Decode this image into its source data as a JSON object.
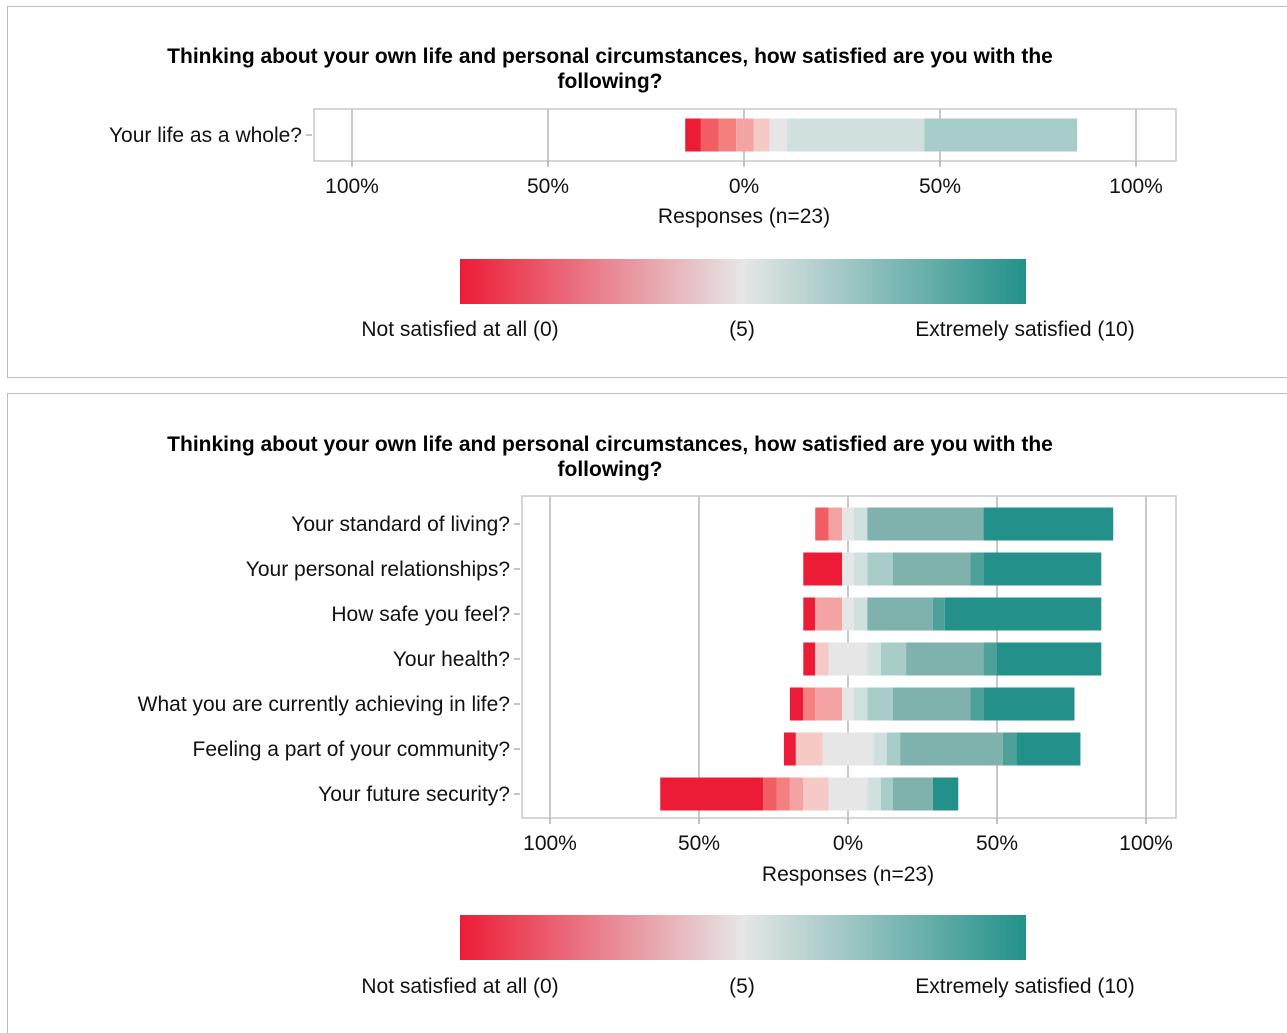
{
  "colors": {
    "scale": [
      "#ed1c36",
      "#f25d63",
      "#f47f7f",
      "#f3a4a2",
      "#f4c9c6",
      "#e6e6e6",
      "#cfe0de",
      "#a8cdc8",
      "#7fb2ac",
      "#4ea199",
      "#23918a"
    ],
    "gradient_low": "#ed1c36",
    "gradient_mid": "#e6e6e6",
    "gradient_high": "#23918a"
  },
  "chart_data": [
    {
      "type": "bar",
      "orientation": "horizontal",
      "stacked": "diverging",
      "title": "Thinking about your own life and personal circumstances, how satisfied are you with the following?",
      "xlabel": "Responses (n=23)",
      "x_ticks": [
        "100%",
        "50%",
        "0%",
        "50%",
        "100%"
      ],
      "x_tick_values": [
        -100,
        -50,
        0,
        50,
        100
      ],
      "xlim": [
        -100,
        100
      ],
      "grid": true,
      "categories": [
        "Your life as a whole?"
      ],
      "segments": [
        [
          {
            "level": 0,
            "from": -15,
            "to": -11
          },
          {
            "level": 1,
            "from": -11,
            "to": -6.5
          },
          {
            "level": 2,
            "from": -6.5,
            "to": -2
          },
          {
            "level": 3,
            "from": -2,
            "to": 2.5
          },
          {
            "level": 4,
            "from": 2.5,
            "to": 6.5
          },
          {
            "level": 5,
            "from": 6.5,
            "to": 11
          },
          {
            "level": 6,
            "from": 11,
            "to": 46
          },
          {
            "level": 7,
            "from": 46,
            "to": 85
          }
        ]
      ],
      "legend": {
        "low_label": "Not satisfied at all (0)",
        "mid_label": "(5)",
        "high_label": "Extremely satisfied (10)"
      }
    },
    {
      "type": "bar",
      "orientation": "horizontal",
      "stacked": "diverging",
      "title": "Thinking about your own life and personal circumstances, how satisfied are you with the following?",
      "xlabel": "Responses (n=23)",
      "x_ticks": [
        "100%",
        "50%",
        "0%",
        "50%",
        "100%"
      ],
      "x_tick_values": [
        -100,
        -50,
        0,
        50,
        100
      ],
      "xlim": [
        -100,
        100
      ],
      "grid": true,
      "categories": [
        "Your standard of living?",
        "Your personal relationships?",
        "How safe you feel?",
        "Your health?",
        "What you are currently achieving in life?",
        "Feeling a part of your community?",
        "Your future security?"
      ],
      "segments": [
        [
          {
            "level": 1,
            "from": -11,
            "to": -6.5
          },
          {
            "level": 3,
            "from": -6.5,
            "to": -2
          },
          {
            "level": 5,
            "from": -2,
            "to": 2
          },
          {
            "level": 6,
            "from": 2,
            "to": 6.5
          },
          {
            "level": 8,
            "from": 6.5,
            "to": 45.5
          },
          {
            "level": 10,
            "from": 45.5,
            "to": 89
          }
        ],
        [
          {
            "level": 0,
            "from": -15,
            "to": -2
          },
          {
            "level": 5,
            "from": -2,
            "to": 2
          },
          {
            "level": 6,
            "from": 2,
            "to": 6.5
          },
          {
            "level": 7,
            "from": 6.5,
            "to": 15
          },
          {
            "level": 8,
            "from": 15,
            "to": 41
          },
          {
            "level": 9,
            "from": 41,
            "to": 45.5
          },
          {
            "level": 10,
            "from": 45.5,
            "to": 85
          }
        ],
        [
          {
            "level": 0,
            "from": -15,
            "to": -11
          },
          {
            "level": 3,
            "from": -11,
            "to": -2
          },
          {
            "level": 5,
            "from": -2,
            "to": 2
          },
          {
            "level": 6,
            "from": 2,
            "to": 6.5
          },
          {
            "level": 8,
            "from": 6.5,
            "to": 28.5
          },
          {
            "level": 9,
            "from": 28.5,
            "to": 32.5
          },
          {
            "level": 10,
            "from": 32.5,
            "to": 85
          }
        ],
        [
          {
            "level": 0,
            "from": -15,
            "to": -11
          },
          {
            "level": 4,
            "from": -11,
            "to": -6.5
          },
          {
            "level": 5,
            "from": -6.5,
            "to": 6.5
          },
          {
            "level": 6,
            "from": 6.5,
            "to": 11
          },
          {
            "level": 7,
            "from": 11,
            "to": 19.5
          },
          {
            "level": 8,
            "from": 19.5,
            "to": 45.5
          },
          {
            "level": 9,
            "from": 45.5,
            "to": 50
          },
          {
            "level": 10,
            "from": 50,
            "to": 85
          }
        ],
        [
          {
            "level": 0,
            "from": -19.5,
            "to": -15
          },
          {
            "level": 2,
            "from": -15,
            "to": -11
          },
          {
            "level": 3,
            "from": -11,
            "to": -2
          },
          {
            "level": 5,
            "from": -2,
            "to": 2
          },
          {
            "level": 6,
            "from": 2,
            "to": 6.5
          },
          {
            "level": 7,
            "from": 6.5,
            "to": 15
          },
          {
            "level": 8,
            "from": 15,
            "to": 41
          },
          {
            "level": 9,
            "from": 41,
            "to": 45.5
          },
          {
            "level": 10,
            "from": 45.5,
            "to": 76
          }
        ],
        [
          {
            "level": 0,
            "from": -21.5,
            "to": -17.5
          },
          {
            "level": 4,
            "from": -17.5,
            "to": -8.5
          },
          {
            "level": 5,
            "from": -8.5,
            "to": 8.5
          },
          {
            "level": 6,
            "from": 8.5,
            "to": 13
          },
          {
            "level": 7,
            "from": 13,
            "to": 17.5
          },
          {
            "level": 8,
            "from": 17.5,
            "to": 52
          },
          {
            "level": 9,
            "from": 52,
            "to": 56.5
          },
          {
            "level": 10,
            "from": 56.5,
            "to": 78
          }
        ],
        [
          {
            "level": 0,
            "from": -63,
            "to": -28.5
          },
          {
            "level": 1,
            "from": -28.5,
            "to": -24
          },
          {
            "level": 2,
            "from": -24,
            "to": -19.5
          },
          {
            "level": 3,
            "from": -19.5,
            "to": -15
          },
          {
            "level": 4,
            "from": -15,
            "to": -6.5
          },
          {
            "level": 5,
            "from": -6.5,
            "to": 6.5
          },
          {
            "level": 6,
            "from": 6.5,
            "to": 11
          },
          {
            "level": 7,
            "from": 11,
            "to": 15
          },
          {
            "level": 8,
            "from": 15,
            "to": 28.5
          },
          {
            "level": 10,
            "from": 28.5,
            "to": 37
          }
        ]
      ],
      "legend": {
        "low_label": "Not satisfied at all (0)",
        "mid_label": "(5)",
        "high_label": "Extremely satisfied (10)"
      }
    }
  ]
}
